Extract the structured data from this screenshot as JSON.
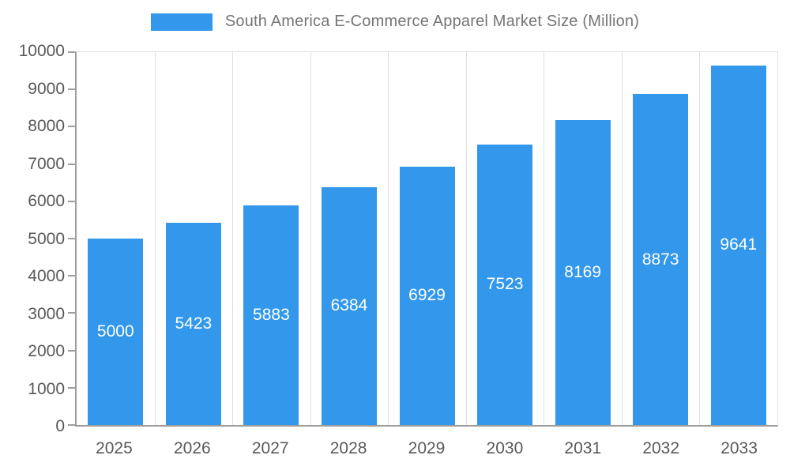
{
  "legend": {
    "swatch_color": "#3398EC"
  },
  "chart_data": {
    "type": "bar",
    "title": "South America E-Commerce Apparel Market Size (Million)",
    "categories": [
      "2025",
      "2026",
      "2027",
      "2028",
      "2029",
      "2030",
      "2031",
      "2032",
      "2033"
    ],
    "values": [
      5000,
      5423,
      5883,
      6384,
      6929,
      7523,
      8169,
      8873,
      9641
    ],
    "xlabel": "",
    "ylabel": "",
    "ylim": [
      0,
      10000
    ],
    "ytick_step": 1000,
    "bar_color": "#3398EC",
    "bar_label_color": "#FFFFFF",
    "grid": "vertical",
    "legend_position": "top"
  }
}
